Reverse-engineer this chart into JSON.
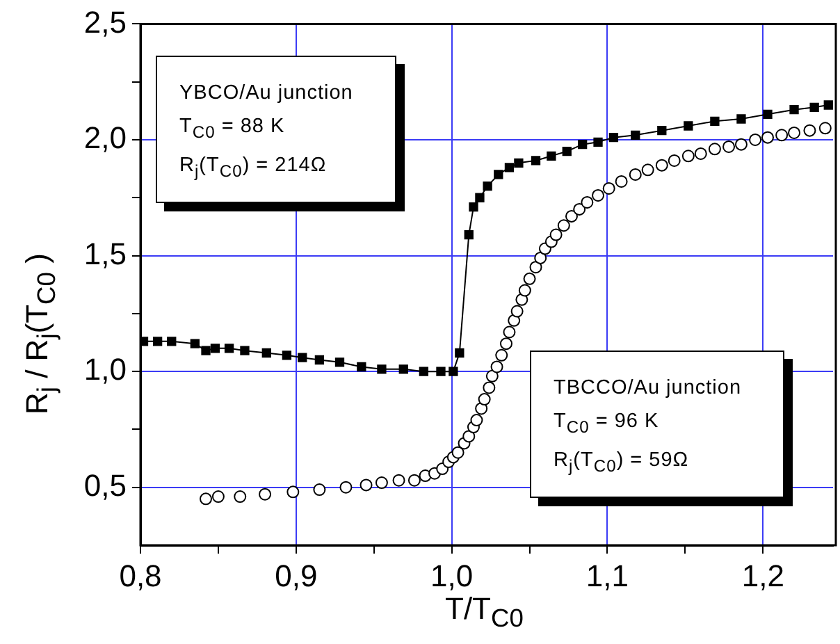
{
  "chart_data": {
    "type": "line",
    "xlabel": "T/T$_{C0}$",
    "ylabel": "R$_{j}$ / R$_{j}$(T$_{C0}$ )",
    "xlim": [
      0.8,
      1.245
    ],
    "ylim": [
      0.25,
      2.5
    ],
    "xticks": [
      {
        "value": 0.8,
        "label": "0,8"
      },
      {
        "value": 0.85,
        "label": null
      },
      {
        "value": 0.9,
        "label": "0,9"
      },
      {
        "value": 0.95,
        "label": null
      },
      {
        "value": 1.0,
        "label": "1,0"
      },
      {
        "value": 1.05,
        "label": null
      },
      {
        "value": 1.1,
        "label": "1,1"
      },
      {
        "value": 1.15,
        "label": null
      },
      {
        "value": 1.2,
        "label": "1,2"
      }
    ],
    "yticks": [
      {
        "value": 0.5,
        "label": "0,5"
      },
      {
        "value": 0.75,
        "label": null
      },
      {
        "value": 1.0,
        "label": "1,0"
      },
      {
        "value": 1.25,
        "label": null
      },
      {
        "value": 1.5,
        "label": "1,5"
      },
      {
        "value": 1.75,
        "label": null
      },
      {
        "value": 2.0,
        "label": "2,0"
      },
      {
        "value": 2.25,
        "label": null
      },
      {
        "value": 2.5,
        "label": "2,5"
      }
    ],
    "grid": true,
    "legend": false,
    "series": [
      {
        "color": "#000000",
        "marker": "square",
        "line_style": "solid",
        "x": [
          0.802,
          0.811,
          0.82,
          0.835,
          0.842,
          0.848,
          0.857,
          0.867,
          0.881,
          0.894,
          0.904,
          0.915,
          0.928,
          0.942,
          0.955,
          0.969,
          0.982,
          0.993,
          1.001,
          1.005,
          1.011,
          1.014,
          1.018,
          1.023,
          1.03,
          1.037,
          1.043,
          1.054,
          1.064,
          1.074,
          1.084,
          1.094,
          1.104,
          1.118,
          1.135,
          1.152,
          1.169,
          1.186,
          1.203,
          1.22,
          1.233,
          1.242
        ],
        "values": [
          1.13,
          1.13,
          1.13,
          1.12,
          1.09,
          1.1,
          1.1,
          1.09,
          1.08,
          1.07,
          1.06,
          1.05,
          1.04,
          1.02,
          1.01,
          1.01,
          1.0,
          1.0,
          1.0,
          1.08,
          1.59,
          1.71,
          1.75,
          1.8,
          1.85,
          1.88,
          1.9,
          1.91,
          1.93,
          1.95,
          1.98,
          1.99,
          2.01,
          2.02,
          2.04,
          2.06,
          2.08,
          2.09,
          2.11,
          2.13,
          2.14,
          2.15
        ]
      },
      {
        "type": "scatter",
        "color": "#000000",
        "marker": "circle",
        "x": [
          0.842,
          0.85,
          0.864,
          0.88,
          0.898,
          0.915,
          0.932,
          0.945,
          0.955,
          0.966,
          0.976,
          0.983,
          0.989,
          0.994,
          0.998,
          1.001,
          1.004,
          1.008,
          1.011,
          1.014,
          1.016,
          1.019,
          1.021,
          1.024,
          1.026,
          1.029,
          1.032,
          1.035,
          1.037,
          1.04,
          1.042,
          1.045,
          1.047,
          1.05,
          1.054,
          1.057,
          1.06,
          1.064,
          1.067,
          1.072,
          1.077,
          1.082,
          1.087,
          1.094,
          1.101,
          1.109,
          1.118,
          1.126,
          1.135,
          1.143,
          1.152,
          1.16,
          1.169,
          1.178,
          1.186,
          1.195,
          1.203,
          1.212,
          1.22,
          1.23,
          1.24
        ],
        "values": [
          0.45,
          0.46,
          0.46,
          0.47,
          0.48,
          0.49,
          0.5,
          0.51,
          0.52,
          0.53,
          0.53,
          0.55,
          0.56,
          0.58,
          0.61,
          0.63,
          0.65,
          0.69,
          0.72,
          0.76,
          0.79,
          0.84,
          0.88,
          0.93,
          0.98,
          1.02,
          1.07,
          1.12,
          1.17,
          1.22,
          1.26,
          1.31,
          1.35,
          1.4,
          1.45,
          1.49,
          1.53,
          1.56,
          1.59,
          1.63,
          1.67,
          1.7,
          1.73,
          1.76,
          1.79,
          1.82,
          1.85,
          1.87,
          1.89,
          1.91,
          1.93,
          1.94,
          1.96,
          1.97,
          1.98,
          2.0,
          2.01,
          2.02,
          2.03,
          2.04,
          2.05
        ]
      }
    ],
    "annotations": [
      "YBCO/Au junction\nT$_{C0}$ = 88 K\nR$_{j}$(T$_{C0}$) = 214Ω",
      "TBCCO/Au junction\nT$_{C0}$ = 96 K\nR$_{j}$(T$_{C0}$) = 59Ω"
    ]
  }
}
